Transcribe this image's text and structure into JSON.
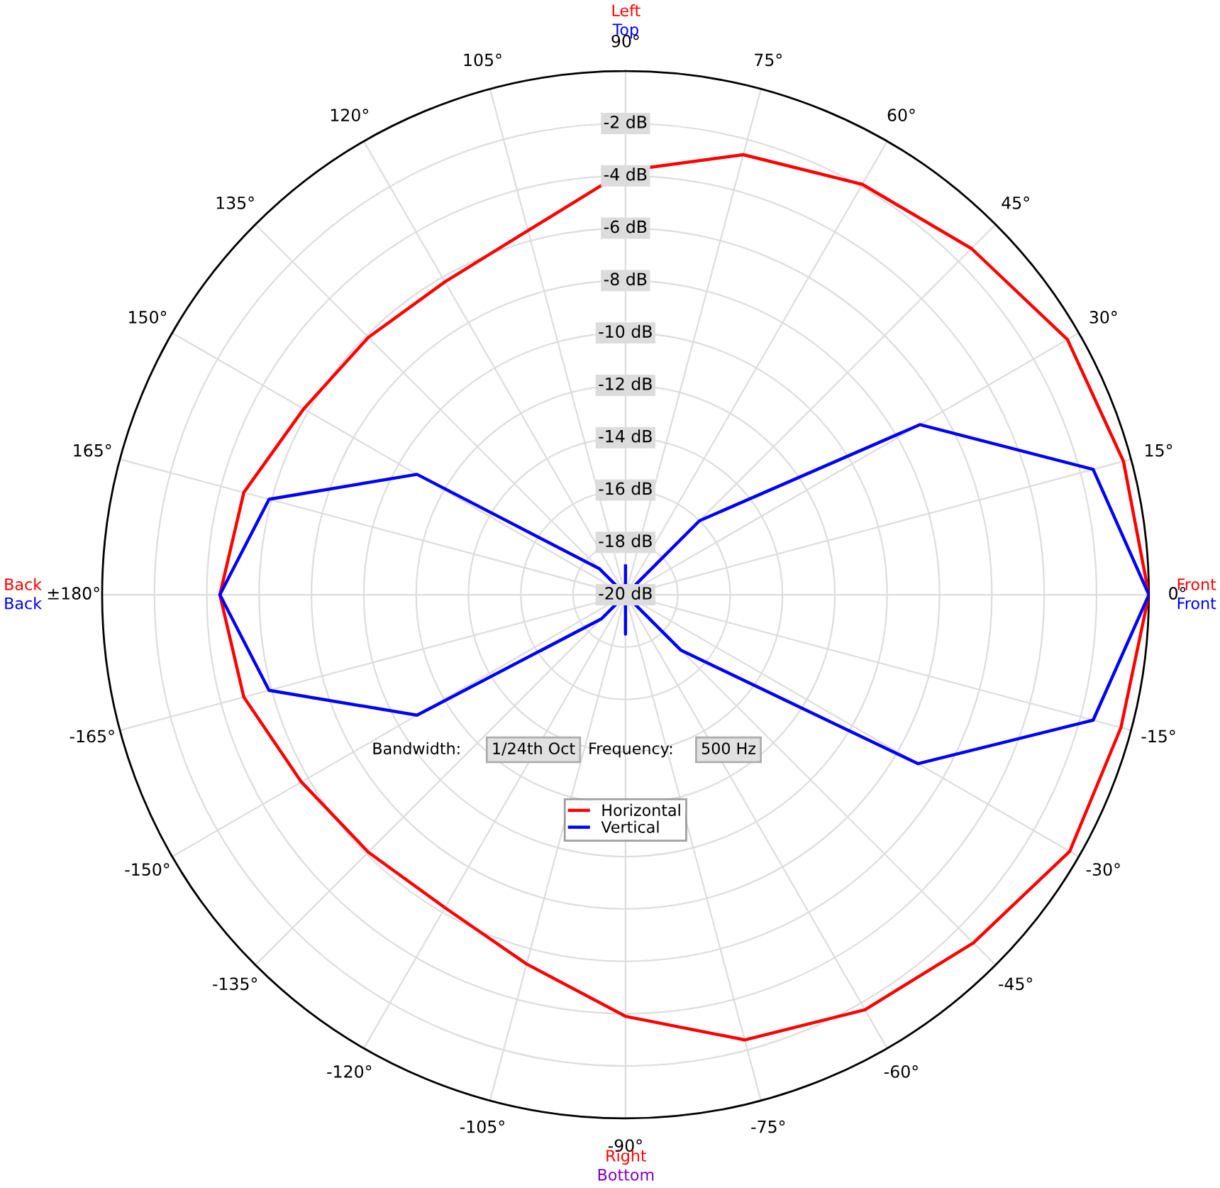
{
  "chart_data": {
    "type": "radar",
    "categories": [
      "90°",
      "75°",
      "60°",
      "45°",
      "30°",
      "15°",
      "0°",
      "-15°",
      "-30°",
      "-45°",
      "-60°",
      "-75°",
      "-90°",
      "-105°",
      "-120°",
      "-135°",
      "-150°",
      "-165°",
      "±180°",
      "165°",
      "150°",
      "135°",
      "120°",
      "105°"
    ],
    "series": [
      {
        "name": "Horizontal",
        "color": "#ff0000",
        "values": [
          -3.8,
          -2.6,
          -1.9,
          -1.3,
          -0.5,
          -0.3,
          0,
          -0.4,
          -0.4,
          -1.2,
          -1.7,
          -2.4,
          -3.9,
          -5.4,
          -6.2,
          -6.1,
          -5.7,
          -4.9,
          -4.5,
          -4.9,
          -5.8,
          -6.1,
          -6.2,
          -5.6
        ]
      },
      {
        "name": "Vertical",
        "color": "#0000ff",
        "values": [
          -18.9,
          -20,
          -20,
          -16,
          -7.0,
          -1.5,
          0,
          -1.5,
          -7.1,
          -17,
          -20,
          -20,
          -18.5,
          -20,
          -20,
          -18.7,
          -10.8,
          -5.9,
          -4.5,
          -5.9,
          -10.8,
          -18.6,
          -20,
          -20
        ]
      }
    ],
    "ylim": [
      -20,
      0
    ],
    "yticks": [
      {
        "value": -2,
        "label": "-2 dB"
      },
      {
        "value": -4,
        "label": "-4 dB"
      },
      {
        "value": -6,
        "label": "-6 dB"
      },
      {
        "value": -8,
        "label": "-8 dB"
      },
      {
        "value": -10,
        "label": "-10 dB"
      },
      {
        "value": -12,
        "label": "-12 dB"
      },
      {
        "value": -14,
        "label": "-14 dB"
      },
      {
        "value": -16,
        "label": "-16 dB"
      },
      {
        "value": -18,
        "label": "-18 dB"
      },
      {
        "value": -20,
        "label": "-20 dB"
      }
    ],
    "grid": true,
    "legend": "bottom",
    "annotations": [
      "Left",
      "Top",
      "Front",
      "Front",
      "Right",
      "Bottom",
      "Back",
      "Back",
      "Bandwidth:",
      "1/24th Oct",
      "Frequency:",
      "500 Hz"
    ]
  }
}
